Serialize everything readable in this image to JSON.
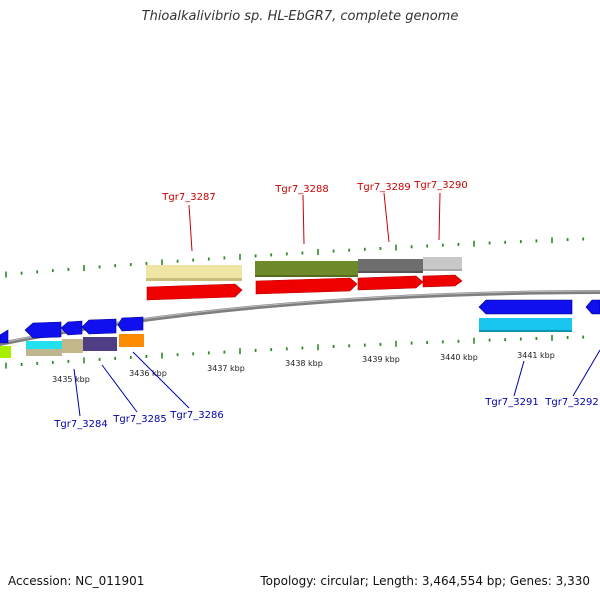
{
  "title": "Thioalkalivibrio sp. HL-EbGR7, complete genome",
  "footer": {
    "accession": "Accession: NC_011901",
    "summary": "Topology: circular; Length: 3,464,554 bp; Genes: 3,330"
  },
  "colors": {
    "forward_label": "#cc0000",
    "reverse_label": "#0000aa",
    "tick": "#2e8b2e",
    "backbone": "#888888"
  },
  "kbp_labels": [
    "3435 kbp",
    "3436 kbp",
    "3437 kbp",
    "3438 kbp",
    "3439 kbp",
    "3440 kbp",
    "3441 kbp"
  ],
  "forward_genes": [
    "Tgr7_3287",
    "Tgr7_3288",
    "Tgr7_3289",
    "Tgr7_3290"
  ],
  "reverse_genes": [
    "Tgr7_3284",
    "Tgr7_3285",
    "Tgr7_3286",
    "Tgr7_3291",
    "Tgr7_3292"
  ]
}
